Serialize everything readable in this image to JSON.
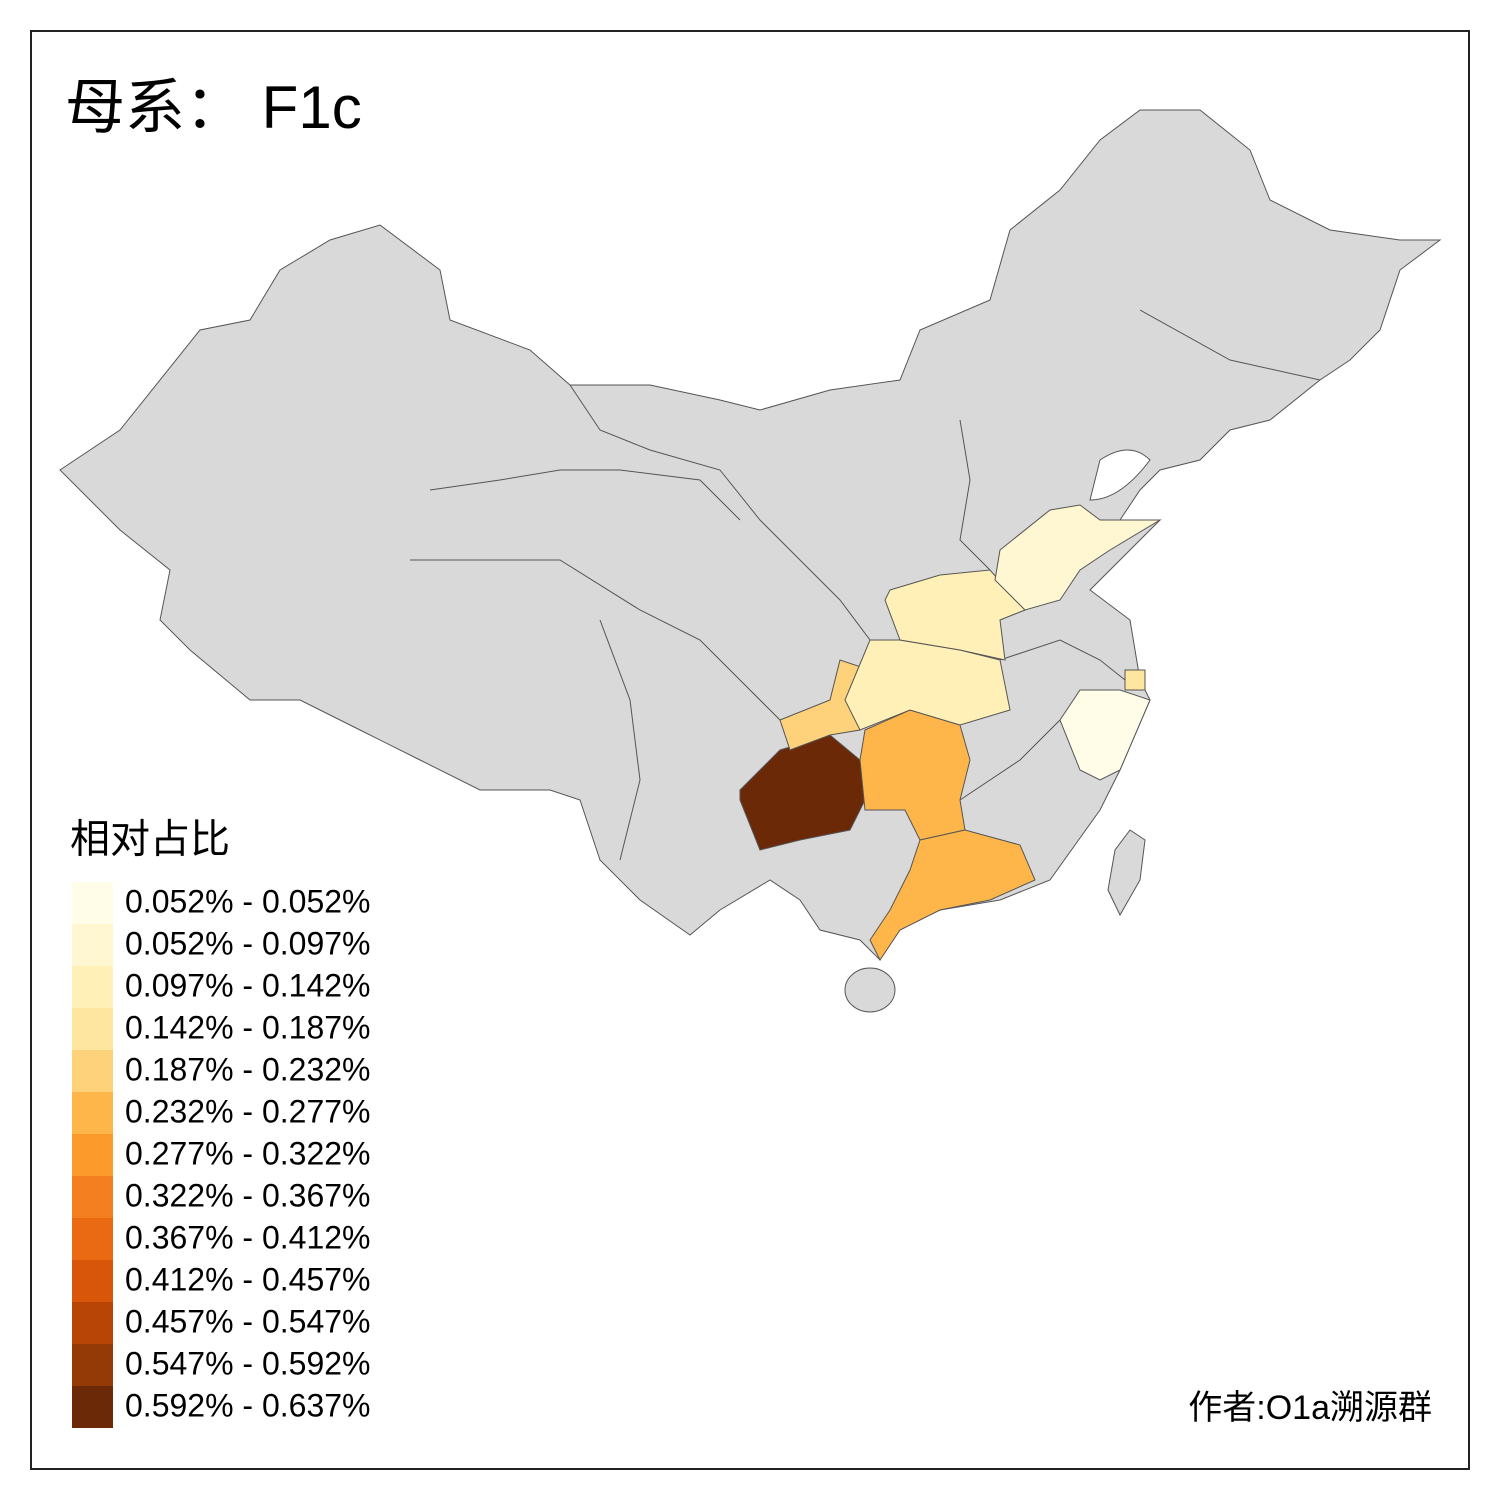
{
  "title": "母系： F1c",
  "legend": {
    "title": "相对占比",
    "items": [
      {
        "label": "0.052% - 0.052%",
        "color": "#fffde8"
      },
      {
        "label": "0.052% - 0.097%",
        "color": "#fff7d2"
      },
      {
        "label": "0.097% - 0.142%",
        "color": "#fff0b8"
      },
      {
        "label": "0.142% - 0.187%",
        "color": "#fee6a0"
      },
      {
        "label": "0.187% - 0.232%",
        "color": "#fed27a"
      },
      {
        "label": "0.232% - 0.277%",
        "color": "#feb54a"
      },
      {
        "label": "0.277% - 0.322%",
        "color": "#fd9a2c"
      },
      {
        "label": "0.322% - 0.367%",
        "color": "#f47f20"
      },
      {
        "label": "0.367% - 0.412%",
        "color": "#e96a12"
      },
      {
        "label": "0.412% - 0.457%",
        "color": "#d7560a"
      },
      {
        "label": "0.457% - 0.547%",
        "color": "#b84506"
      },
      {
        "label": "0.547% - 0.592%",
        "color": "#943a07"
      },
      {
        "label": "0.592% - 0.637%",
        "color": "#6b2908"
      }
    ]
  },
  "author": "作者:O1a溯源群"
}
